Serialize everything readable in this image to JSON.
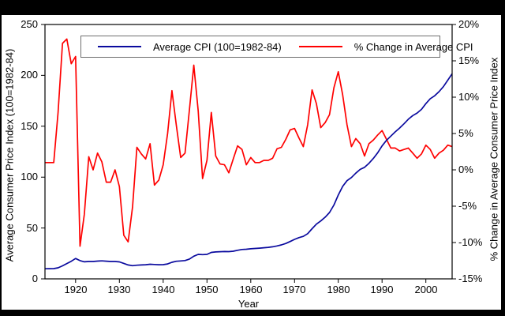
{
  "frame": {
    "background": "#000000",
    "panel_background": "#ffffff"
  },
  "chart_data": {
    "type": "line",
    "title": "",
    "xlabel": "Year",
    "ylabel_left": "Average Consumer Price Index (100=1982-84)",
    "ylabel_right": "% Change in Average Consumer Price Index",
    "legend_position": "top-center-inside",
    "grid": false,
    "x_range": [
      1913,
      2006
    ],
    "x_axis": {
      "tick_values": [
        1920,
        1930,
        1940,
        1950,
        1960,
        1970,
        1980,
        1990,
        2000
      ],
      "tick_labels": [
        "1920",
        "1930",
        "1940",
        "1950",
        "1960",
        "1970",
        "1980",
        "1990",
        "2000"
      ]
    },
    "left_axis": {
      "min": 0,
      "max": 250,
      "tick_values": [
        250,
        200,
        150,
        100,
        50,
        0
      ],
      "tick_labels": [
        "250",
        "200",
        "150",
        "100",
        "50",
        "0"
      ]
    },
    "right_axis": {
      "min": -15,
      "max": 20,
      "tick_values": [
        20,
        15,
        10,
        5,
        0,
        -5,
        -10,
        -15
      ],
      "tick_labels": [
        "20%",
        "15%",
        "10%",
        "5%",
        "0%",
        "-5%",
        "-10%",
        "-15%"
      ]
    },
    "years": [
      1913,
      1914,
      1915,
      1916,
      1917,
      1918,
      1919,
      1920,
      1921,
      1922,
      1923,
      1924,
      1925,
      1926,
      1927,
      1928,
      1929,
      1930,
      1931,
      1932,
      1933,
      1934,
      1935,
      1936,
      1937,
      1938,
      1939,
      1940,
      1941,
      1942,
      1943,
      1944,
      1945,
      1946,
      1947,
      1948,
      1949,
      1950,
      1951,
      1952,
      1953,
      1954,
      1955,
      1956,
      1957,
      1958,
      1959,
      1960,
      1961,
      1962,
      1963,
      1964,
      1965,
      1966,
      1967,
      1968,
      1969,
      1970,
      1971,
      1972,
      1973,
      1974,
      1975,
      1976,
      1977,
      1978,
      1979,
      1980,
      1981,
      1982,
      1983,
      1984,
      1985,
      1986,
      1987,
      1988,
      1989,
      1990,
      1991,
      1992,
      1993,
      1994,
      1995,
      1996,
      1997,
      1998,
      1999,
      2000,
      2001,
      2002,
      2003,
      2004,
      2005,
      2006
    ],
    "series": [
      {
        "name": "Average CPI (100=1982-84)",
        "axis": "left",
        "color": "#0a0a9e",
        "values": [
          9.9,
          10.0,
          10.1,
          10.9,
          12.8,
          15.1,
          17.3,
          20.0,
          17.9,
          16.8,
          17.1,
          17.1,
          17.5,
          17.7,
          17.4,
          17.1,
          17.1,
          16.7,
          15.2,
          13.7,
          13.0,
          13.4,
          13.7,
          13.9,
          14.4,
          14.1,
          13.9,
          14.0,
          14.7,
          16.3,
          17.3,
          17.6,
          18.0,
          19.5,
          22.3,
          24.1,
          23.8,
          24.1,
          26.0,
          26.5,
          26.7,
          26.9,
          26.8,
          27.2,
          28.1,
          28.9,
          29.1,
          29.6,
          29.9,
          30.2,
          30.6,
          31.0,
          31.5,
          32.4,
          33.4,
          34.8,
          36.7,
          38.8,
          40.5,
          41.8,
          44.4,
          49.3,
          53.8,
          56.9,
          60.6,
          65.2,
          72.6,
          82.4,
          90.9,
          96.5,
          99.6,
          103.9,
          107.6,
          109.6,
          113.6,
          118.3,
          124.0,
          130.7,
          136.2,
          140.3,
          144.5,
          148.2,
          152.4,
          156.9,
          160.5,
          163.0,
          166.6,
          172.2,
          177.1,
          179.9,
          184.0,
          188.9,
          195.3,
          201.6
        ]
      },
      {
        "name": "% Change in Average CPI",
        "axis": "right",
        "color": "#ff0000",
        "values": [
          1.0,
          1.0,
          1.0,
          7.9,
          17.4,
          18.0,
          14.6,
          15.6,
          -10.5,
          -6.1,
          1.8,
          0.0,
          2.3,
          1.1,
          -1.7,
          -1.7,
          0.0,
          -2.3,
          -9.0,
          -9.9,
          -5.1,
          3.1,
          2.2,
          1.5,
          3.6,
          -2.1,
          -1.4,
          0.7,
          5.0,
          10.9,
          6.1,
          1.7,
          2.3,
          8.3,
          14.4,
          8.1,
          -1.2,
          1.3,
          7.9,
          1.9,
          0.8,
          0.7,
          -0.4,
          1.5,
          3.3,
          2.8,
          0.7,
          1.7,
          1.0,
          1.0,
          1.3,
          1.3,
          1.6,
          2.9,
          3.1,
          4.2,
          5.5,
          5.7,
          4.4,
          3.2,
          6.2,
          11.0,
          9.1,
          5.8,
          6.5,
          7.6,
          11.3,
          13.5,
          10.3,
          6.2,
          3.2,
          4.3,
          3.6,
          1.9,
          3.6,
          4.1,
          4.8,
          5.4,
          4.2,
          3.0,
          3.0,
          2.6,
          2.8,
          3.0,
          2.3,
          1.6,
          2.2,
          3.4,
          2.8,
          1.6,
          2.3,
          2.7,
          3.4,
          3.2
        ]
      }
    ]
  }
}
